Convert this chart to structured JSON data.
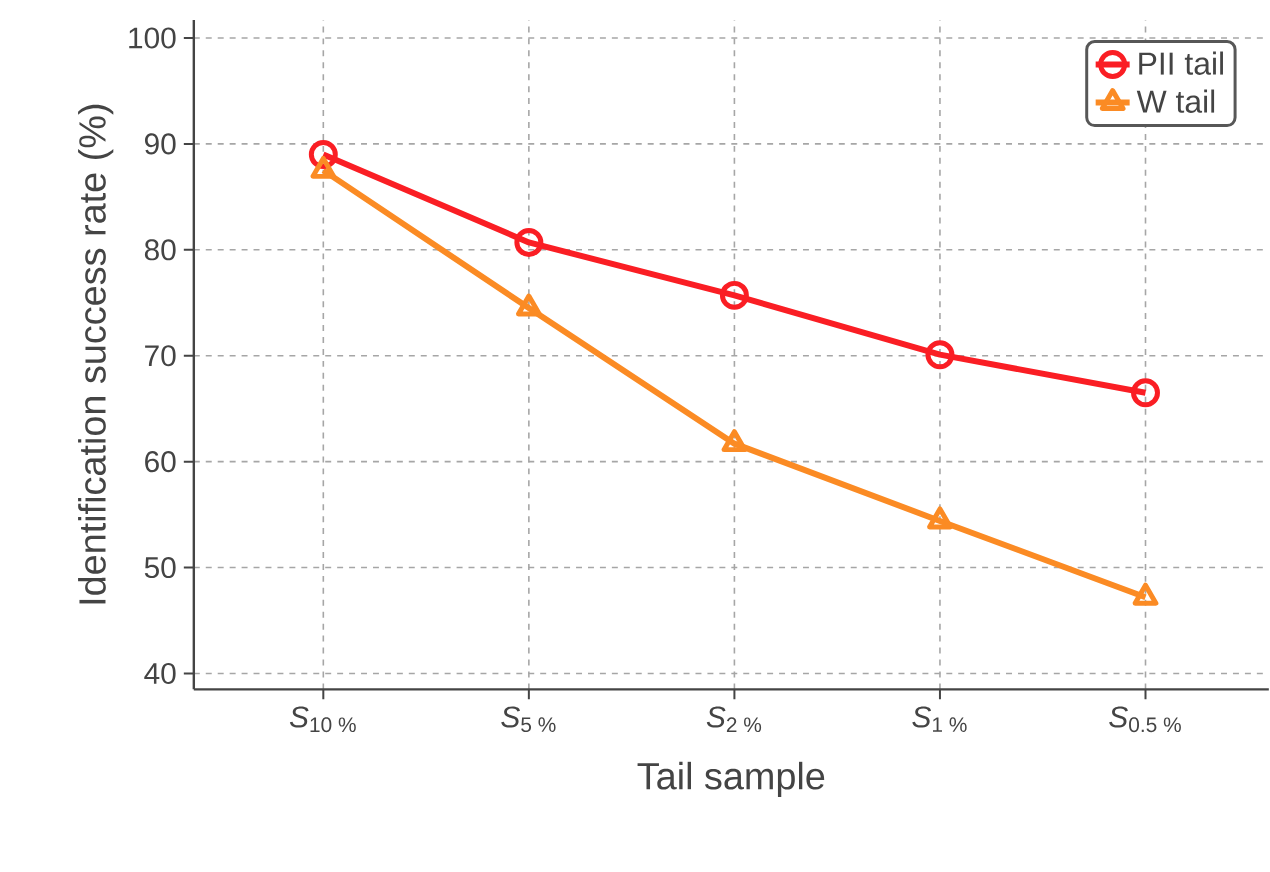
{
  "chart_data": {
    "type": "line",
    "xlabel": "Tail sample",
    "ylabel": "Identification success rate (%)",
    "categories": [
      "*S*$_{10 %}$",
      "*S*$_{5 %}$",
      "*S*$_{2 %}$",
      "*S*$_{1 %}$",
      "*S*$_{0.5 %}$"
    ],
    "series": [
      {
        "name": "PII tail",
        "color": "#fa1e24",
        "marker": "circle",
        "values": [
          89.0,
          80.7,
          75.7,
          70.1,
          66.5
        ]
      },
      {
        "name": "W tail",
        "color": "#fb8b24",
        "marker": "triangle",
        "values": [
          87.5,
          74.5,
          61.7,
          54.4,
          47.2
        ]
      }
    ],
    "ylim": [
      38.5,
      101.7
    ],
    "yticks": [
      40,
      50,
      60,
      70,
      80,
      90,
      100
    ],
    "grid": true,
    "legend": "top right",
    "line_style": "solid"
  }
}
